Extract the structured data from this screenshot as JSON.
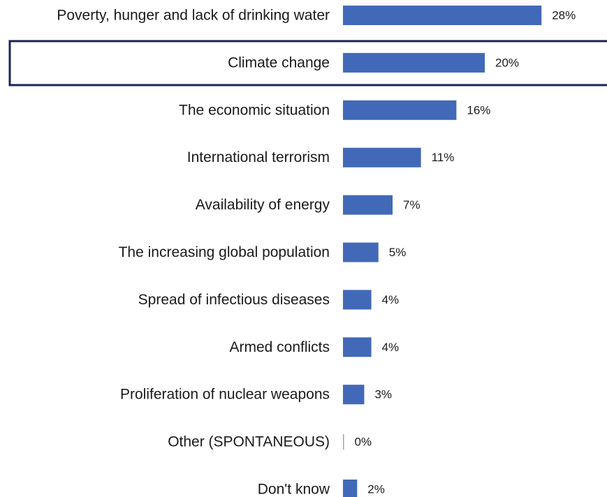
{
  "chart_data": {
    "type": "bar",
    "orientation": "horizontal",
    "categories": [
      "Poverty, hunger and lack of drinking water",
      "Climate change",
      "The economic situation",
      "International terrorism",
      "Availability of energy",
      "The increasing global population",
      "Spread of infectious diseases",
      "Armed conflicts",
      "Proliferation of nuclear weapons",
      "Other (SPONTANEOUS)",
      "Don't know"
    ],
    "values": [
      28,
      20,
      16,
      11,
      7,
      5,
      4,
      4,
      3,
      0,
      2
    ],
    "value_labels": [
      "28%",
      "20%",
      "16%",
      "11%",
      "7%",
      "5%",
      "4%",
      "4%",
      "3%",
      "0%",
      "2%"
    ],
    "highlighted_category": "Climate change",
    "title": "",
    "xlabel": "",
    "ylabel": "",
    "xlim": [
      0,
      28
    ],
    "grid": false,
    "legend": "none",
    "colors": {
      "bar": "#4169b8",
      "highlight_border": "#1b2459",
      "text": "#1a1a1a",
      "zero_tick": "#9aa3b5"
    }
  }
}
